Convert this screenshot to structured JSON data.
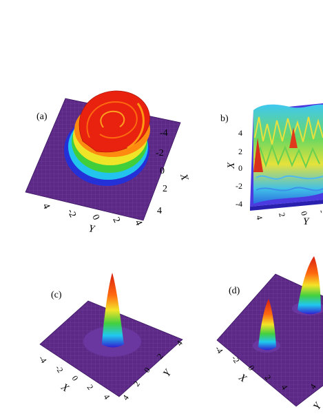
{
  "panels": [
    {
      "label": "(a)",
      "x_axis_label": "X",
      "y_axis_label": "Y",
      "x_ticks": [
        "-4",
        "-2",
        "0",
        "2",
        "4"
      ],
      "y_ticks": [
        "4",
        "-2",
        "0",
        "2",
        "4"
      ]
    },
    {
      "label": "b)",
      "x_axis_label": "X",
      "y_axis_label": "Y",
      "x_ticks": [
        "4",
        "2",
        "0",
        "-2",
        "-4"
      ],
      "y_ticks": [
        "4",
        "2",
        "0",
        "-"
      ]
    },
    {
      "label": "(c)",
      "x_axis_label": "X",
      "y_axis_label": "Y",
      "x_ticks": [
        "-4",
        "-2",
        "0",
        "2",
        "4"
      ],
      "y_ticks": [
        "4",
        "2",
        "0",
        "2",
        "4"
      ]
    },
    {
      "label": "(d)",
      "x_axis_label": "X",
      "y_axis_label": "Y",
      "x_ticks": [
        "-4",
        "-2",
        "0",
        "2",
        "4"
      ],
      "y_ticks": [
        "4"
      ]
    }
  ],
  "colors": {
    "base": "#5c2a86",
    "grid": "#8a5cb0",
    "cyan": "#2ec8e8",
    "green": "#4ccc3c",
    "yellow": "#f0e628",
    "orange": "#ff8a10",
    "red": "#e02010",
    "blue": "#2040e0"
  }
}
